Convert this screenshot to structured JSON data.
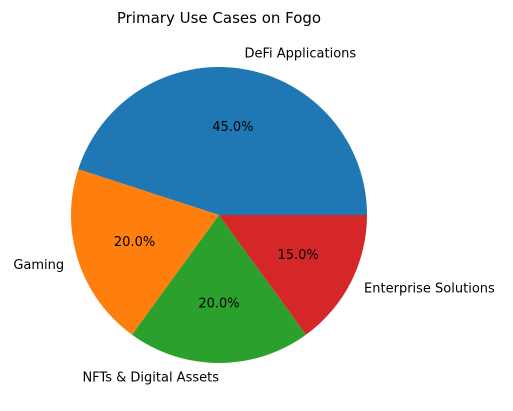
{
  "chart_data": {
    "type": "pie",
    "title": "Primary Use Cases on Fogo",
    "start_angle_deg": 0,
    "direction": "counterclockwise",
    "slices": [
      {
        "label": "DeFi Applications",
        "value": 45.0,
        "pct_label": "45.0%",
        "color": "#1f77b4"
      },
      {
        "label": "Gaming",
        "value": 20.0,
        "pct_label": "20.0%",
        "color": "#ff7f0e"
      },
      {
        "label": "NFTs & Digital Assets",
        "value": 20.0,
        "pct_label": "20.0%",
        "color": "#2ca02c"
      },
      {
        "label": "Enterprise Solutions",
        "value": 15.0,
        "pct_label": "15.0%",
        "color": "#d62728"
      }
    ]
  }
}
